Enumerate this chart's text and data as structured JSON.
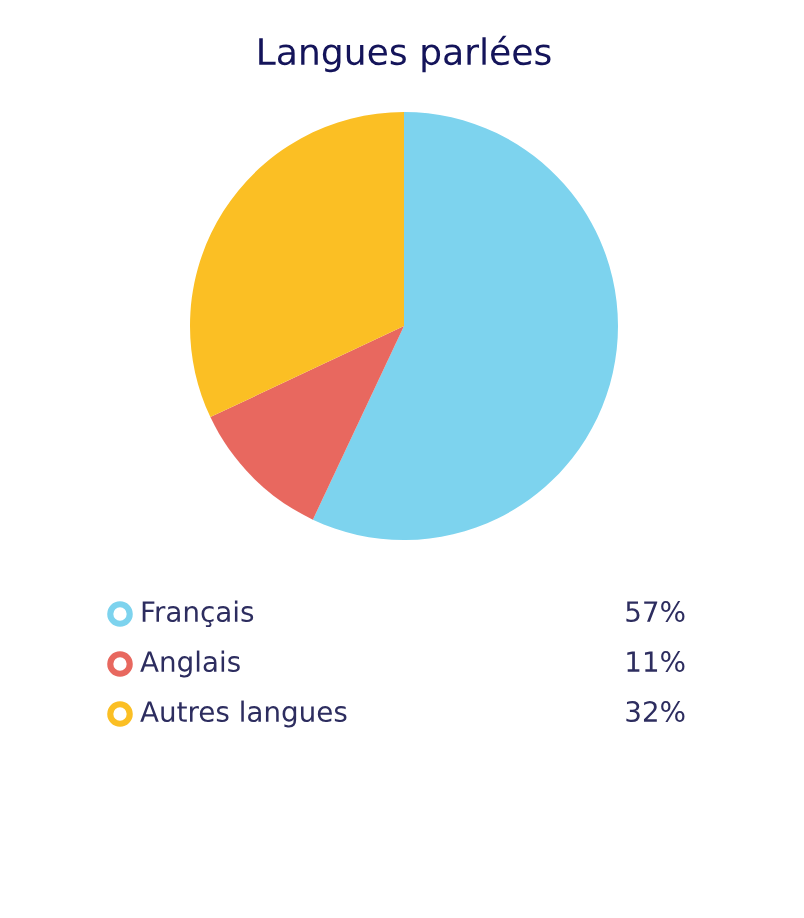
{
  "chart_data": {
    "type": "pie",
    "title": "Langues parlées",
    "categories": [
      "Français",
      "Anglais",
      "Autres langues"
    ],
    "values": [
      57,
      11,
      32
    ],
    "colors": [
      "#7dd3ee",
      "#e8685f",
      "#fbbf24"
    ],
    "value_labels": [
      "57%",
      "11%",
      "32%"
    ],
    "legend": "bottom"
  }
}
